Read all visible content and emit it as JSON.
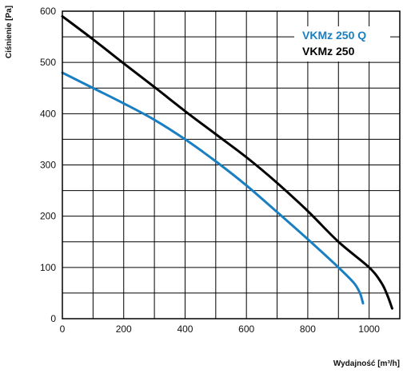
{
  "chart_data": {
    "type": "line",
    "xlabel": "Wydajność [m³/h]",
    "ylabel": "Ciśnienie [Pa]",
    "xlim": [
      0,
      1100
    ],
    "ylim": [
      0,
      600
    ],
    "x_ticks": [
      0,
      200,
      400,
      600,
      800,
      1000
    ],
    "y_ticks": [
      0,
      100,
      200,
      300,
      400,
      500,
      600
    ],
    "grid": true,
    "legend_position": "top-right",
    "series": [
      {
        "name": "VKMz 250 Q",
        "color": "#1a7fc1",
        "points": [
          [
            0,
            480
          ],
          [
            100,
            450
          ],
          [
            200,
            420
          ],
          [
            300,
            388
          ],
          [
            400,
            350
          ],
          [
            500,
            307
          ],
          [
            600,
            260
          ],
          [
            700,
            208
          ],
          [
            800,
            155
          ],
          [
            900,
            100
          ],
          [
            950,
            70
          ],
          [
            970,
            50
          ],
          [
            980,
            30
          ]
        ]
      },
      {
        "name": "VKMz 250",
        "color": "#000000",
        "points": [
          [
            0,
            590
          ],
          [
            100,
            545
          ],
          [
            200,
            498
          ],
          [
            300,
            452
          ],
          [
            400,
            405
          ],
          [
            500,
            360
          ],
          [
            600,
            315
          ],
          [
            700,
            265
          ],
          [
            800,
            210
          ],
          [
            900,
            150
          ],
          [
            1000,
            100
          ],
          [
            1040,
            70
          ],
          [
            1060,
            45
          ],
          [
            1075,
            20
          ]
        ]
      }
    ]
  }
}
